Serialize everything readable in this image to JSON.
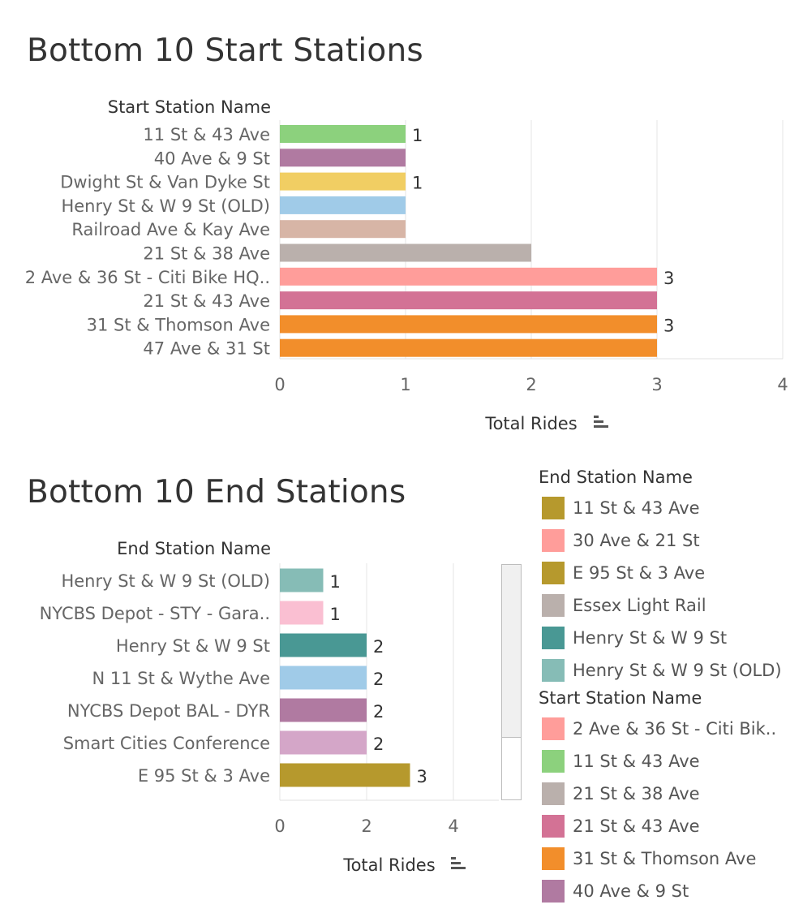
{
  "charts": {
    "start": {
      "title": "Bottom 10 Start Stations",
      "row_header": "Start Station Name",
      "axis_title": "Total Rides"
    },
    "end": {
      "title": "Bottom 10 End Stations",
      "row_header": "End Station Name",
      "axis_title": "Total Rides"
    }
  },
  "legends": {
    "end": {
      "title": "End Station Name",
      "items": [
        {
          "label": "11 St & 43 Ave",
          "color": "#B6992D"
        },
        {
          "label": "30 Ave & 21 St",
          "color": "#FF9D9A"
        },
        {
          "label": "E 95 St & 3 Ave",
          "color": "#B6992D"
        },
        {
          "label": "Essex Light Rail",
          "color": "#BAB0AC"
        },
        {
          "label": "Henry St & W 9 St",
          "color": "#499894"
        },
        {
          "label": "Henry St & W 9 St (OLD)",
          "color": "#86BCB6"
        }
      ]
    },
    "start": {
      "title": "Start Station Name",
      "items": [
        {
          "label": "2 Ave & 36 St - Citi Bik..",
          "color": "#FF9D9A"
        },
        {
          "label": "11 St & 43 Ave",
          "color": "#8CD17D"
        },
        {
          "label": "21 St & 38 Ave",
          "color": "#BAB0AC"
        },
        {
          "label": "21 St & 43 Ave",
          "color": "#D37295"
        },
        {
          "label": "31 St & Thomson Ave",
          "color": "#F28E2B"
        },
        {
          "label": "40 Ave & 9 St",
          "color": "#B07AA1"
        }
      ]
    }
  },
  "chart_data": [
    {
      "type": "bar",
      "orientation": "horizontal",
      "title": "Bottom 10 Start Stations",
      "ylabel": "Start Station Name",
      "xlabel": "Total Rides",
      "xlim": [
        0,
        4
      ],
      "xticks": [
        0,
        1,
        2,
        3,
        4
      ],
      "grid": true,
      "categories": [
        "11 St & 43 Ave",
        "40 Ave & 9 St",
        "Dwight St & Van Dyke St",
        "Henry St & W 9 St (OLD)",
        "Railroad Ave & Kay Ave",
        "21 St & 38 Ave",
        "2 Ave & 36 St - Citi Bike HQ..",
        "21 St & 43 Ave",
        "31 St & Thomson Ave",
        "47 Ave & 31 St"
      ],
      "values": [
        1,
        1,
        1,
        1,
        1,
        2,
        3,
        3,
        3,
        3
      ],
      "value_labels": [
        "1",
        "",
        "1",
        "",
        "",
        "",
        "3",
        "",
        "3",
        ""
      ],
      "colors": [
        "#8CD17D",
        "#B07AA1",
        "#F1CE63",
        "#A0CBE8",
        "#D7B5A6",
        "#BAB0AC",
        "#FF9D9A",
        "#D37295",
        "#F28E2B",
        "#F28E2B"
      ]
    },
    {
      "type": "bar",
      "orientation": "horizontal",
      "title": "Bottom 10 End Stations",
      "ylabel": "End Station Name",
      "xlabel": "Total Rides",
      "xlim": [
        0,
        5
      ],
      "xticks": [
        0,
        2,
        4
      ],
      "grid": true,
      "categories": [
        "Henry St & W 9 St (OLD)",
        "NYCBS Depot - STY - Gara..",
        "Henry St & W 9 St",
        "N 11 St & Wythe Ave",
        "NYCBS Depot BAL - DYR",
        "Smart Cities Conference",
        "E 95 St & 3 Ave"
      ],
      "values": [
        1,
        1,
        2,
        2,
        2,
        2,
        3
      ],
      "value_labels": [
        "1",
        "1",
        "2",
        "2",
        "2",
        "2",
        "3"
      ],
      "colors": [
        "#86BCB6",
        "#FABFD2",
        "#499894",
        "#A0CBE8",
        "#B07AA1",
        "#D4A6C8",
        "#B6992D"
      ]
    }
  ]
}
